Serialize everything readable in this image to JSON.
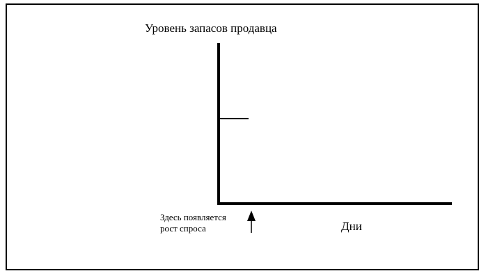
{
  "chart_data": {
    "type": "line",
    "title": "",
    "ylabel": "Уровень запасов продавца",
    "xlabel": "Дни",
    "series": [],
    "grid": false,
    "legend": "none",
    "y_marker": {
      "description": "starting inventory level",
      "value_fraction_of_axis": 0.53
    },
    "annotation": {
      "lines": [
        "Здесь появляется",
        "рост спроса"
      ],
      "pointer": "arrow-up"
    },
    "colors": {
      "axis": "#000000",
      "text": "#000000",
      "background": "#ffffff"
    }
  }
}
